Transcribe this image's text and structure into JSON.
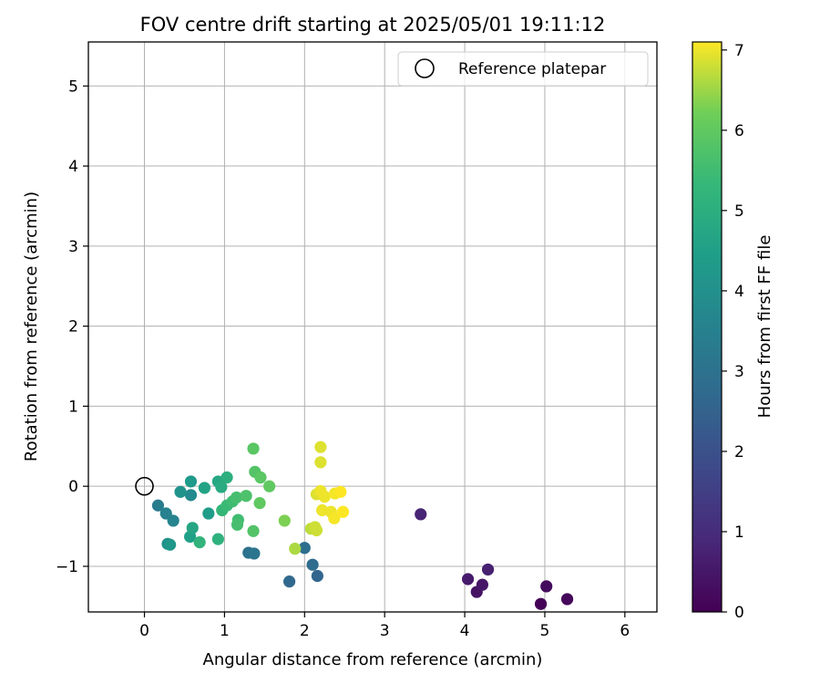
{
  "chart_data": {
    "type": "scatter",
    "title": "FOV centre drift starting at 2025/05/01 19:11:12",
    "xlabel": "Angular distance from reference (arcmin)",
    "ylabel": "Rotation from reference (arcmin)",
    "xlim": [
      -0.7,
      6.4
    ],
    "ylim": [
      -1.57,
      5.55
    ],
    "xticks": [
      0,
      1,
      2,
      3,
      4,
      5,
      6
    ],
    "xtick_labels": [
      "0",
      "1",
      "2",
      "3",
      "4",
      "5",
      "6"
    ],
    "yticks": [
      -1,
      0,
      1,
      2,
      3,
      4,
      5
    ],
    "ytick_labels": [
      "−1",
      "0",
      "1",
      "2",
      "3",
      "4",
      "5"
    ],
    "grid": true,
    "legend": {
      "placement": "top-right",
      "entries": [
        "Reference platepar"
      ]
    },
    "reference_point": {
      "x": 0,
      "y": 0,
      "marker": "open-circle"
    },
    "colorbar": {
      "label": "Hours from first FF file",
      "range": [
        0,
        7.1
      ],
      "ticks": [
        0,
        1,
        2,
        3,
        4,
        5,
        6,
        7
      ],
      "tick_labels": [
        "0",
        "1",
        "2",
        "3",
        "4",
        "5",
        "6",
        "7"
      ],
      "colormap": "viridis"
    },
    "points": [
      {
        "x": 4.95,
        "y": -1.47,
        "c": 0.05
      },
      {
        "x": 5.28,
        "y": -1.41,
        "c": 0.15
      },
      {
        "x": 5.02,
        "y": -1.25,
        "c": 0.25
      },
      {
        "x": 4.15,
        "y": -1.32,
        "c": 0.4
      },
      {
        "x": 4.22,
        "y": -1.23,
        "c": 0.5
      },
      {
        "x": 4.04,
        "y": -1.16,
        "c": 0.6
      },
      {
        "x": 4.29,
        "y": -1.04,
        "c": 0.7
      },
      {
        "x": 3.45,
        "y": -0.35,
        "c": 0.8
      },
      {
        "x": 2.16,
        "y": -1.12,
        "c": 2.6
      },
      {
        "x": 1.81,
        "y": -1.19,
        "c": 2.7
      },
      {
        "x": 2.1,
        "y": -0.98,
        "c": 2.8
      },
      {
        "x": 2.0,
        "y": -0.77,
        "c": 2.9
      },
      {
        "x": 1.3,
        "y": -0.83,
        "c": 3.0
      },
      {
        "x": 1.37,
        "y": -0.84,
        "c": 3.1
      },
      {
        "x": 0.17,
        "y": -0.24,
        "c": 3.3
      },
      {
        "x": 0.27,
        "y": -0.34,
        "c": 3.5
      },
      {
        "x": 0.36,
        "y": -0.43,
        "c": 3.6
      },
      {
        "x": 0.58,
        "y": -0.11,
        "c": 3.8
      },
      {
        "x": 0.29,
        "y": -0.72,
        "c": 4.0
      },
      {
        "x": 0.45,
        "y": -0.07,
        "c": 4.1
      },
      {
        "x": 0.32,
        "y": -0.73,
        "c": 4.2
      },
      {
        "x": 0.58,
        "y": 0.06,
        "c": 4.3
      },
      {
        "x": 0.8,
        "y": -0.34,
        "c": 4.4
      },
      {
        "x": 0.57,
        "y": -0.63,
        "c": 4.5
      },
      {
        "x": 0.75,
        "y": -0.02,
        "c": 4.6
      },
      {
        "x": 0.6,
        "y": -0.52,
        "c": 4.7
      },
      {
        "x": 0.92,
        "y": 0.06,
        "c": 4.8
      },
      {
        "x": 0.96,
        "y": -0.01,
        "c": 4.9
      },
      {
        "x": 1.03,
        "y": 0.11,
        "c": 5.0
      },
      {
        "x": 0.92,
        "y": -0.66,
        "c": 5.1
      },
      {
        "x": 0.69,
        "y": -0.7,
        "c": 5.2
      },
      {
        "x": 0.97,
        "y": -0.3,
        "c": 5.3
      },
      {
        "x": 1.03,
        "y": -0.24,
        "c": 5.4
      },
      {
        "x": 1.1,
        "y": -0.19,
        "c": 5.5
      },
      {
        "x": 1.17,
        "y": -0.42,
        "c": 5.5
      },
      {
        "x": 1.16,
        "y": -0.48,
        "c": 5.6
      },
      {
        "x": 1.15,
        "y": -0.14,
        "c": 5.6
      },
      {
        "x": 1.27,
        "y": -0.12,
        "c": 5.7
      },
      {
        "x": 1.36,
        "y": -0.56,
        "c": 5.8
      },
      {
        "x": 1.38,
        "y": 0.18,
        "c": 5.8
      },
      {
        "x": 1.36,
        "y": 0.47,
        "c": 5.9
      },
      {
        "x": 1.45,
        "y": 0.11,
        "c": 5.9
      },
      {
        "x": 1.44,
        "y": -0.21,
        "c": 6.0
      },
      {
        "x": 1.56,
        "y": 0.0,
        "c": 6.0
      },
      {
        "x": 1.75,
        "y": -0.43,
        "c": 6.3
      },
      {
        "x": 1.88,
        "y": -0.78,
        "c": 6.6
      },
      {
        "x": 2.08,
        "y": -0.53,
        "c": 6.7
      },
      {
        "x": 2.15,
        "y": -0.55,
        "c": 6.8
      },
      {
        "x": 2.13,
        "y": -0.51,
        "c": 6.8
      },
      {
        "x": 2.2,
        "y": 0.49,
        "c": 6.9
      },
      {
        "x": 2.2,
        "y": 0.3,
        "c": 6.9
      },
      {
        "x": 2.15,
        "y": -0.1,
        "c": 6.9
      },
      {
        "x": 2.2,
        "y": -0.06,
        "c": 7.0
      },
      {
        "x": 2.25,
        "y": -0.13,
        "c": 7.0
      },
      {
        "x": 2.22,
        "y": -0.3,
        "c": 7.0
      },
      {
        "x": 2.33,
        "y": -0.32,
        "c": 7.0
      },
      {
        "x": 2.37,
        "y": -0.4,
        "c": 7.05
      },
      {
        "x": 2.38,
        "y": -0.09,
        "c": 7.05
      },
      {
        "x": 2.45,
        "y": -0.07,
        "c": 7.1
      },
      {
        "x": 2.48,
        "y": -0.32,
        "c": 7.1
      }
    ]
  }
}
